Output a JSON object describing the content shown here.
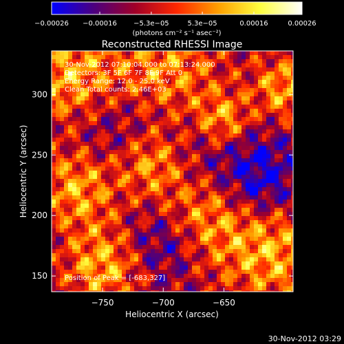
{
  "chart_data": {
    "type": "heatmap",
    "title": "Reconstructed RHESSI Image",
    "xlabel": "Heliocentric X (arcsec)",
    "ylabel": "Heliocentric Y (arcsec)",
    "xlim": [
      -792,
      -593
    ],
    "ylim": [
      137,
      336
    ],
    "x_ticks": [
      -750,
      -700,
      -650
    ],
    "y_ticks": [
      150,
      200,
      250,
      300
    ],
    "x_tick_labels": [
      "−750",
      "−700",
      "−650"
    ],
    "y_tick_labels": [
      "150",
      "200",
      "250",
      "300"
    ],
    "colorbar": {
      "range": [
        -0.00026,
        0.00026
      ],
      "tick_values": [
        -0.00026,
        -0.00016,
        -5.3e-05,
        5.3e-05,
        0.00016,
        0.00026
      ],
      "tick_labels": [
        "−0.00026",
        "−0.00016",
        "−5.3e−05",
        "5.3e−05",
        "0.00016",
        "0.00026"
      ],
      "units": "(photons cm⁻² s⁻¹ asec⁻²)",
      "colormap": [
        "#0000ff",
        "#4b0080",
        "#a00028",
        "#ff2800",
        "#ffa000",
        "#ffff40",
        "#ffffff"
      ]
    },
    "annotations": [
      "30-Nov-2012 07:10:04.000 to 07:13:24.000",
      "Detectors: 3F 5F 6F 7F 8F 9F Att 0",
      "Energy Range: 12.0 - 25.0 keV",
      "Clean     Total counts: 2.46E+03"
    ],
    "peak_label": "Position of Peak = [-683,327]",
    "peak_position": [
      -683,
      327
    ]
  },
  "footer": {
    "timestamp": "30-Nov-2012 03:29"
  }
}
